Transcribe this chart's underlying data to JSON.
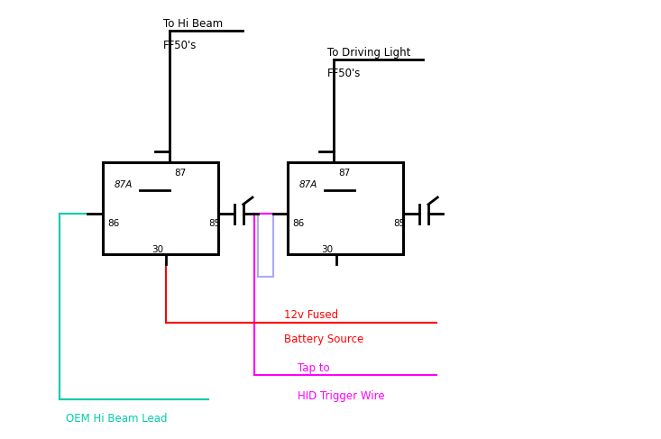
{
  "bg_color": "#ffffff",
  "wire_color_green": "#00ccaa",
  "wire_color_blue": "#aaaaff",
  "wire_color_red": "#ff0000",
  "wire_color_magenta": "#ff00ff",
  "wire_color_black": "#000000",
  "text_hi_beam_line1": "To Hi Beam",
  "text_hi_beam_line2": "FF50's",
  "text_driving_light_line1": "To Driving Light",
  "text_driving_light_line2": "FF50's",
  "text_12v_line1": "12v Fused",
  "text_12v_line2": "Battery Source",
  "text_tap_line1": "Tap to",
  "text_tap_line2": "HID Trigger Wire",
  "text_oem": "OEM Hi Beam Lead",
  "r1x": 0.155,
  "r1y": 0.42,
  "r1w": 0.175,
  "r1h": 0.21,
  "r2x": 0.435,
  "r2y": 0.42,
  "r2w": 0.175,
  "r2h": 0.21
}
